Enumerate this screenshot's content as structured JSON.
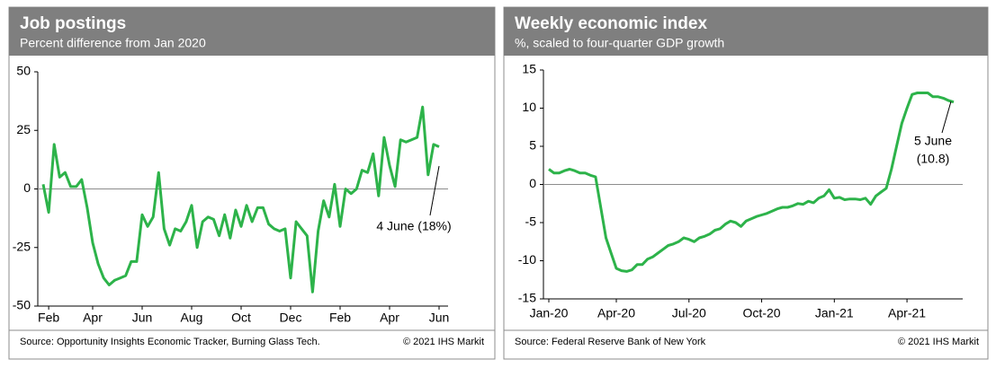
{
  "chart_data": [
    {
      "type": "line",
      "title": "Job postings",
      "subtitle": "Percent difference from Jan 2020",
      "source": "Source: Opportunity Insights Economic Tracker, Burning Glass Tech.",
      "copyright": "© 2021 IHS Markit",
      "annotation": [
        "4 June (18%)"
      ],
      "categories": [
        null,
        "Feb",
        null,
        null,
        null,
        null,
        null,
        null,
        null,
        "Apr",
        null,
        null,
        null,
        null,
        null,
        null,
        null,
        null,
        "Jun",
        null,
        null,
        null,
        null,
        null,
        null,
        null,
        null,
        "Aug",
        null,
        null,
        null,
        null,
        null,
        null,
        null,
        null,
        "Oct",
        null,
        null,
        null,
        null,
        null,
        null,
        null,
        null,
        "Dec",
        null,
        null,
        null,
        null,
        null,
        null,
        null,
        null,
        "Feb",
        null,
        null,
        null,
        null,
        null,
        null,
        null,
        null,
        "Apr",
        null,
        null,
        null,
        null,
        null,
        null,
        null,
        null,
        "Jun"
      ],
      "series": [
        {
          "name": "Job postings",
          "color": "#2db34a",
          "values": [
            2,
            -10,
            19,
            5,
            7,
            1,
            1,
            4,
            -8,
            -23,
            -32,
            -38,
            -41,
            -39,
            -38,
            -37,
            -31,
            -31,
            -11,
            -16,
            -12,
            7,
            -17,
            -24,
            -17,
            -18,
            -14,
            -7,
            -25,
            -14,
            -12,
            -13,
            -20,
            -11,
            -21,
            -9,
            -16,
            -7,
            -14,
            -8,
            -8,
            -15,
            -17,
            -18,
            -17,
            -38,
            -14,
            -17,
            -20,
            -44,
            -18,
            -5,
            -12,
            2,
            -16,
            0,
            -2,
            0,
            8,
            7,
            15,
            -3,
            22,
            10,
            1,
            21,
            20,
            21,
            22,
            35,
            6,
            19,
            18
          ]
        }
      ],
      "ylim": [
        -50,
        50
      ],
      "yticks": [
        -50,
        -25,
        0,
        25,
        50
      ],
      "grid": false
    },
    {
      "type": "line",
      "title": "Weekly economic index",
      "subtitle": "%, scaled to four-quarter GDP growth",
      "source": "Source: Federal Reserve Bank of New York",
      "copyright": "© 2021 IHS Markit",
      "annotation": [
        "5 June",
        "(10.8)"
      ],
      "categories": [
        "Jan-20",
        null,
        null,
        null,
        null,
        null,
        null,
        null,
        null,
        null,
        null,
        null,
        null,
        "Apr-20",
        null,
        null,
        null,
        null,
        null,
        null,
        null,
        null,
        null,
        null,
        null,
        null,
        null,
        "Jul-20",
        null,
        null,
        null,
        null,
        null,
        null,
        null,
        null,
        null,
        null,
        null,
        null,
        null,
        "Oct-20",
        null,
        null,
        null,
        null,
        null,
        null,
        null,
        null,
        null,
        null,
        null,
        null,
        null,
        "Jan-21",
        null,
        null,
        null,
        null,
        null,
        null,
        null,
        null,
        null,
        null,
        null,
        null,
        null,
        "Apr-21",
        null,
        null,
        null,
        null,
        null,
        null,
        null,
        null,
        null
      ],
      "series": [
        {
          "name": "Weekly economic index",
          "color": "#2db34a",
          "values": [
            2,
            1.5,
            1.5,
            1.8,
            2,
            1.8,
            1.5,
            1.5,
            1.2,
            1,
            -3,
            -7,
            -9,
            -11,
            -11.3,
            -11.4,
            -11.2,
            -10.5,
            -10.5,
            -9.8,
            -9.5,
            -9,
            -8.5,
            -8,
            -7.8,
            -7.5,
            -7,
            -7.2,
            -7.5,
            -7,
            -6.8,
            -6.5,
            -6,
            -5.8,
            -5.2,
            -4.8,
            -5,
            -5.5,
            -4.8,
            -4.5,
            -4.2,
            -4,
            -3.8,
            -3.5,
            -3.2,
            -3,
            -3,
            -2.8,
            -2.5,
            -2.6,
            -2.2,
            -2.4,
            -1.8,
            -1.5,
            -0.7,
            -1.8,
            -1.7,
            -2,
            -1.9,
            -1.9,
            -2,
            -1.8,
            -2.6,
            -1.5,
            -1,
            -0.5,
            2,
            5,
            8,
            10,
            11.8,
            12,
            12,
            12,
            11.5,
            11.5,
            11.3,
            11,
            10.8
          ]
        }
      ],
      "ylim": [
        -15,
        15
      ],
      "yticks": [
        -15,
        -10,
        -5,
        0,
        5,
        10,
        15
      ],
      "grid": false
    }
  ]
}
